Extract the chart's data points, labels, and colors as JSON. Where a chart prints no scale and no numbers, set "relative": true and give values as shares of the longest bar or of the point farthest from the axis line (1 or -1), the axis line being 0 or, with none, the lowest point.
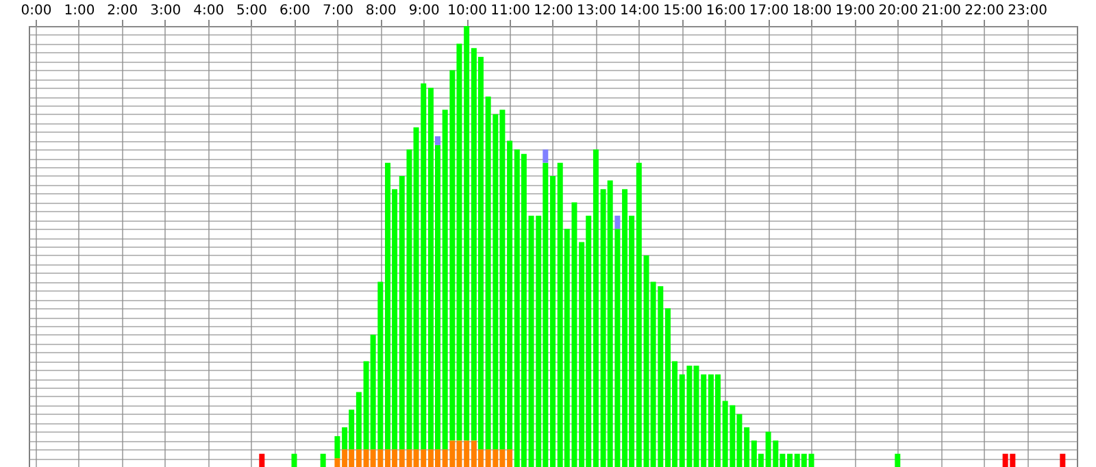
{
  "chart_data": {
    "type": "bar",
    "stacked": true,
    "relative": true,
    "grid": true,
    "legend": false,
    "xlim": [
      0,
      24
    ],
    "xticks": [
      {
        "value": 0,
        "label": "0:00"
      },
      {
        "value": 1,
        "label": "1:00"
      },
      {
        "value": 2,
        "label": "2:00"
      },
      {
        "value": 3,
        "label": "3:00"
      },
      {
        "value": 4,
        "label": "4:00"
      },
      {
        "value": 5,
        "label": "5:00"
      },
      {
        "value": 6,
        "label": "6:00"
      },
      {
        "value": 7,
        "label": "7:00"
      },
      {
        "value": 8,
        "label": "8:00"
      },
      {
        "value": 9,
        "label": "9:00"
      },
      {
        "value": 10,
        "label": "10:00"
      },
      {
        "value": 11,
        "label": "11:00"
      },
      {
        "value": 12,
        "label": "12:00"
      },
      {
        "value": 13,
        "label": "13:00"
      },
      {
        "value": 14,
        "label": "14:00"
      },
      {
        "value": 15,
        "label": "15:00"
      },
      {
        "value": 16,
        "label": "16:00"
      },
      {
        "value": 17,
        "label": "17:00"
      },
      {
        "value": 18,
        "label": "18:00"
      },
      {
        "value": 19,
        "label": "19:00"
      },
      {
        "value": 20,
        "label": "20:00"
      },
      {
        "value": 21,
        "label": "21:00"
      },
      {
        "value": 22,
        "label": "22:00"
      },
      {
        "value": 23,
        "label": "23:00"
      }
    ],
    "x": [
      5.25,
      6.0,
      6.67,
      7.0,
      7.17,
      7.33,
      7.5,
      7.67,
      7.83,
      8.0,
      8.17,
      8.33,
      8.5,
      8.67,
      8.83,
      9.0,
      9.17,
      9.33,
      9.5,
      9.67,
      9.83,
      10.0,
      10.17,
      10.33,
      10.5,
      10.67,
      10.83,
      11.0,
      11.17,
      11.33,
      11.5,
      11.67,
      11.83,
      12.0,
      12.17,
      12.33,
      12.5,
      12.67,
      12.83,
      13.0,
      13.17,
      13.33,
      13.5,
      13.67,
      13.83,
      14.0,
      14.17,
      14.33,
      14.5,
      14.67,
      14.83,
      15.0,
      15.17,
      15.33,
      15.5,
      15.67,
      15.83,
      16.0,
      16.17,
      16.33,
      16.5,
      16.67,
      16.83,
      17.0,
      17.17,
      17.33,
      17.5,
      17.67,
      17.83,
      18.0,
      20.0,
      22.5,
      22.67,
      23.83
    ],
    "series": [
      {
        "color": "#ff8000",
        "values": [
          null,
          null,
          null,
          0.02,
          0.04,
          0.04,
          0.04,
          0.04,
          0.04,
          0.04,
          0.04,
          0.04,
          0.04,
          0.04,
          0.04,
          0.04,
          0.04,
          0.04,
          0.04,
          0.06,
          0.06,
          0.06,
          0.06,
          0.04,
          0.04,
          0.04,
          0.04,
          0.04,
          null,
          null,
          null,
          null,
          null,
          null,
          null,
          null,
          null,
          null,
          null,
          null,
          null,
          null,
          null,
          null,
          null,
          null,
          null,
          null,
          null,
          null,
          null,
          null,
          null,
          null,
          null,
          null,
          null,
          null,
          null,
          null,
          null,
          null,
          null,
          null,
          null,
          null,
          null,
          null,
          null,
          null,
          null,
          null,
          null,
          null
        ]
      },
      {
        "color": "#ff0000",
        "values": [
          0.03,
          null,
          null,
          null,
          null,
          null,
          null,
          null,
          null,
          null,
          null,
          null,
          null,
          null,
          null,
          null,
          null,
          null,
          null,
          null,
          null,
          null,
          null,
          null,
          null,
          null,
          null,
          null,
          null,
          null,
          null,
          null,
          null,
          null,
          null,
          null,
          null,
          null,
          null,
          null,
          null,
          null,
          null,
          null,
          null,
          null,
          null,
          null,
          null,
          null,
          null,
          null,
          null,
          null,
          null,
          null,
          null,
          null,
          null,
          null,
          null,
          null,
          null,
          null,
          null,
          null,
          null,
          null,
          null,
          null,
          null,
          0.03,
          0.03,
          0.03
        ]
      },
      {
        "color": "#00ff00",
        "values": [
          null,
          0.03,
          0.03,
          0.05,
          0.05,
          0.09,
          0.13,
          0.2,
          0.26,
          0.38,
          0.65,
          0.59,
          0.62,
          0.68,
          0.73,
          0.83,
          0.82,
          0.69,
          0.77,
          0.84,
          0.9,
          0.94,
          0.89,
          0.89,
          0.8,
          0.76,
          0.77,
          0.7,
          0.72,
          0.71,
          0.57,
          0.57,
          0.69,
          0.66,
          0.69,
          0.54,
          0.6,
          0.51,
          0.57,
          0.72,
          0.63,
          0.65,
          0.54,
          0.63,
          0.57,
          0.69,
          0.48,
          0.42,
          0.41,
          0.36,
          0.24,
          0.21,
          0.23,
          0.23,
          0.21,
          0.21,
          0.21,
          0.15,
          0.14,
          0.12,
          0.09,
          0.06,
          0.03,
          0.08,
          0.06,
          0.03,
          0.03,
          0.03,
          0.03,
          0.03,
          0.03,
          null,
          null,
          null
        ]
      },
      {
        "color": "#8080ff",
        "values": [
          null,
          null,
          null,
          null,
          null,
          null,
          null,
          null,
          null,
          null,
          null,
          null,
          null,
          null,
          null,
          null,
          null,
          0.02,
          null,
          null,
          null,
          null,
          null,
          null,
          null,
          null,
          null,
          null,
          null,
          null,
          null,
          null,
          0.03,
          null,
          null,
          null,
          null,
          null,
          null,
          null,
          null,
          null,
          0.03,
          null,
          null,
          null,
          null,
          null,
          null,
          null,
          null,
          null,
          null,
          null,
          null,
          null,
          null,
          null,
          null,
          null,
          null,
          null,
          null,
          null,
          null,
          null,
          null,
          null,
          null,
          null,
          null,
          null,
          null,
          null
        ]
      }
    ]
  }
}
